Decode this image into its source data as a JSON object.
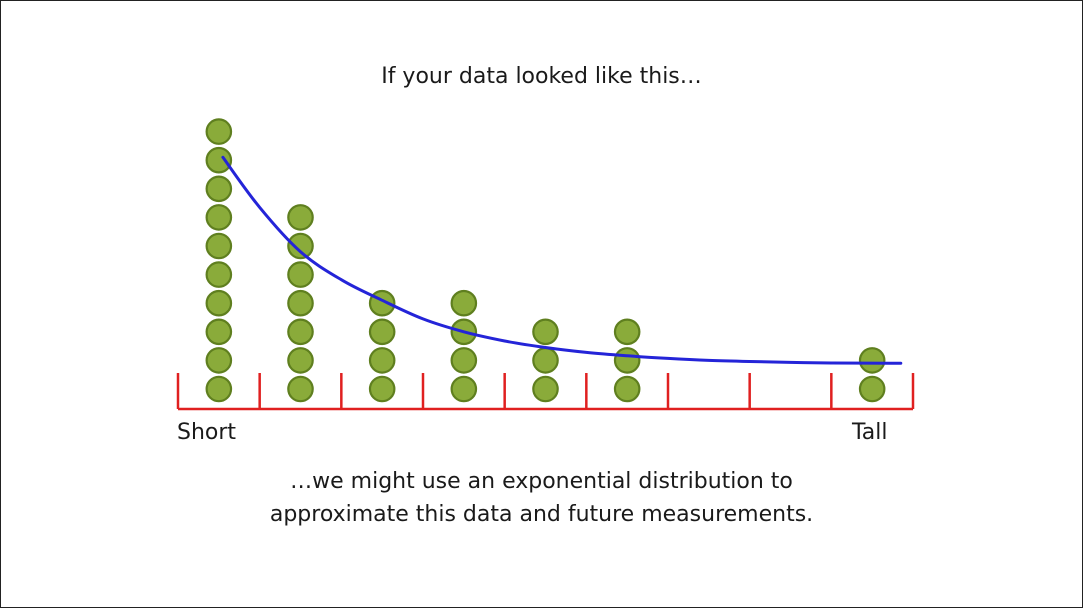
{
  "slide": {
    "title": "If your data looked like this…",
    "caption_line1": "…we might use an exponential distribution to",
    "caption_line2": "approximate this data and future measurements."
  },
  "colors": {
    "axis": "#e02020",
    "dot_fill": "#8aab3a",
    "dot_stroke": "#5f7f1f",
    "curve": "#2424d8",
    "text": "#1a1a1a"
  },
  "chart_data": {
    "type": "scatter",
    "subtype": "dot-plot-with-fitted-curve",
    "xlabel_left": "Short",
    "xlabel_right": "Tall",
    "bins": [
      1,
      2,
      3,
      4,
      5,
      6,
      7,
      8,
      9
    ],
    "counts": [
      10,
      7,
      4,
      4,
      3,
      3,
      0,
      0,
      2
    ],
    "count_range": [
      0,
      10
    ],
    "curve": {
      "name": "exponential fit",
      "x": [
        1.05,
        1.5,
        2,
        2.5,
        3,
        3.5,
        4,
        4.5,
        5,
        5.5,
        6,
        6.5,
        7,
        7.5,
        8,
        8.5,
        9.35
      ],
      "y": [
        9.1,
        7.35,
        5.8,
        4.82,
        4.1,
        3.45,
        3.0,
        2.68,
        2.45,
        2.28,
        2.16,
        2.07,
        2.0,
        1.96,
        1.93,
        1.91,
        1.9
      ]
    },
    "grid": false,
    "legend": "none"
  }
}
